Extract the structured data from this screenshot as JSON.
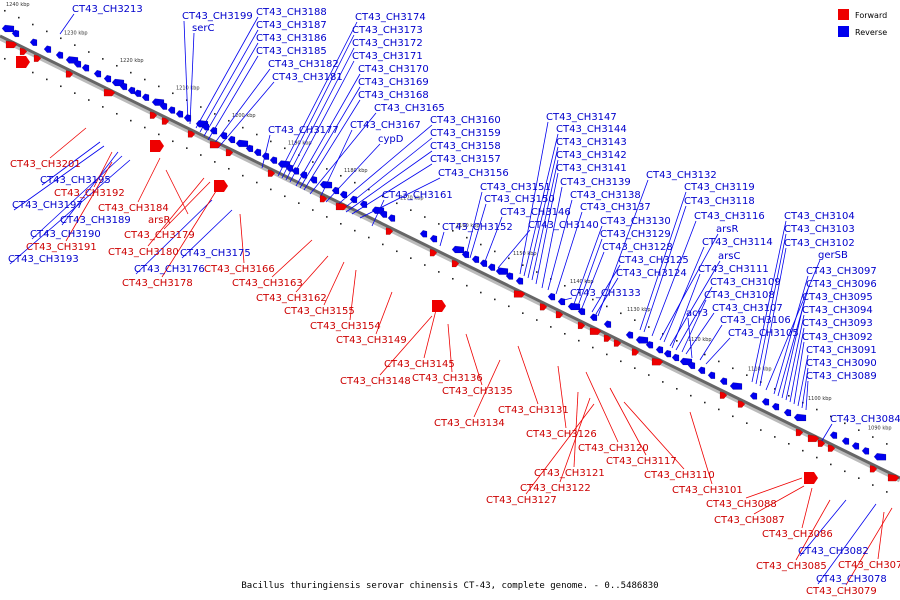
{
  "caption": "Bacillus thuringiensis serovar chinensis CT-43, complete genome. - 0..5486830",
  "legend": {
    "forward_label": "Forward",
    "reverse_label": "Reverse",
    "forward_color": "#ee0000",
    "reverse_color": "#0000ee"
  },
  "axis": {
    "ticks": [
      "1240 kbp",
      "1230 kbp",
      "1220 kbp",
      "1210 kbp",
      "1200 kbp",
      "1190 kbp",
      "1180 kbp",
      "1170 kbp",
      "1160 kbp",
      "1150 kbp",
      "1140 kbp",
      "1130 kbp",
      "1120 kbp",
      "1110 kbp",
      "1100 kbp",
      "1090 kbp"
    ]
  },
  "reverse_labels": [
    "CT43_CH3213",
    "CT43_CH3199",
    "serC",
    "CT43_CH3188",
    "CT43_CH3187",
    "CT43_CH3186",
    "CT43_CH3185",
    "CT43_CH3182",
    "CT43_CH3181",
    "CT43_CH3174",
    "CT43_CH3173",
    "CT43_CH3172",
    "CT43_CH3171",
    "CT43_CH3170",
    "CT43_CH3169",
    "CT43_CH3168",
    "CT43_CH3165",
    "CT43_CH3177",
    "CT43_CH3167",
    "cypD",
    "CT43_CH3160",
    "CT43_CH3159",
    "CT43_CH3158",
    "CT43_CH3157",
    "CT43_CH3156",
    "CT43_CH3195",
    "CT43_CH3197",
    "CT43_CH3189",
    "CT43_CH3190",
    "CT43_CH3193",
    "CT43_CH3175",
    "CT43_CH3176",
    "CT43_CH3161",
    "CT43_CH3151",
    "CT43_CH3150",
    "CT43_CH3152",
    "CT43_CH3146",
    "CT43_CH3140",
    "CT43_CH3147",
    "CT43_CH3144",
    "CT43_CH3143",
    "CT43_CH3142",
    "CT43_CH3141",
    "CT43_CH3139",
    "CT43_CH3138",
    "CT43_CH3137",
    "CT43_CH3132",
    "CT43_CH3130",
    "CT43_CH3129",
    "CT43_CH3128",
    "CT43_CH3125",
    "CT43_CH3124",
    "CT43_CH3133",
    "CT43_CH3119",
    "CT43_CH3118",
    "CT43_CH3116",
    "arsR",
    "CT43_CH3114",
    "arsC",
    "CT43_CH3111",
    "CT43_CH3109",
    "CT43_CH3108",
    "CT43_CH3107",
    "acr3",
    "CT43_CH3106",
    "CT43_CH3105",
    "CT43_CH3104",
    "CT43_CH3103",
    "CT43_CH3102",
    "gerSB",
    "CT43_CH3097",
    "CT43_CH3096",
    "CT43_CH3095",
    "CT43_CH3094",
    "CT43_CH3093",
    "CT43_CH3092",
    "CT43_CH3091",
    "CT43_CH3090",
    "CT43_CH3089",
    "CT43_CH3084",
    "CT43_CH3082",
    "CT43_CH3078"
  ],
  "forward_labels": [
    "CT43_CH3201",
    "CT43_CH3192",
    "CT43_CH3184",
    "arsR",
    "CT43_CH3191",
    "CT43_CH3180",
    "CT43_CH3179",
    "CT43_CH3178",
    "CT43_CH3166",
    "CT43_CH3163",
    "CT43_CH3162",
    "CT43_CH3155",
    "CT43_CH3154",
    "CT43_CH3149",
    "CT43_CH3145",
    "CT43_CH3148",
    "CT43_CH3136",
    "CT43_CH3135",
    "CT43_CH3131",
    "CT43_CH3134",
    "CT43_CH3126",
    "CT43_CH3120",
    "CT43_CH3117",
    "CT43_CH3121",
    "CT43_CH3110",
    "CT43_CH3122",
    "CT43_CH3101",
    "CT43_CH3127",
    "CT43_CH3088",
    "CT43_CH3087",
    "CT43_CH3086",
    "CT43_CH3085",
    "CT43_CH3077",
    "CT43_CH3079"
  ]
}
